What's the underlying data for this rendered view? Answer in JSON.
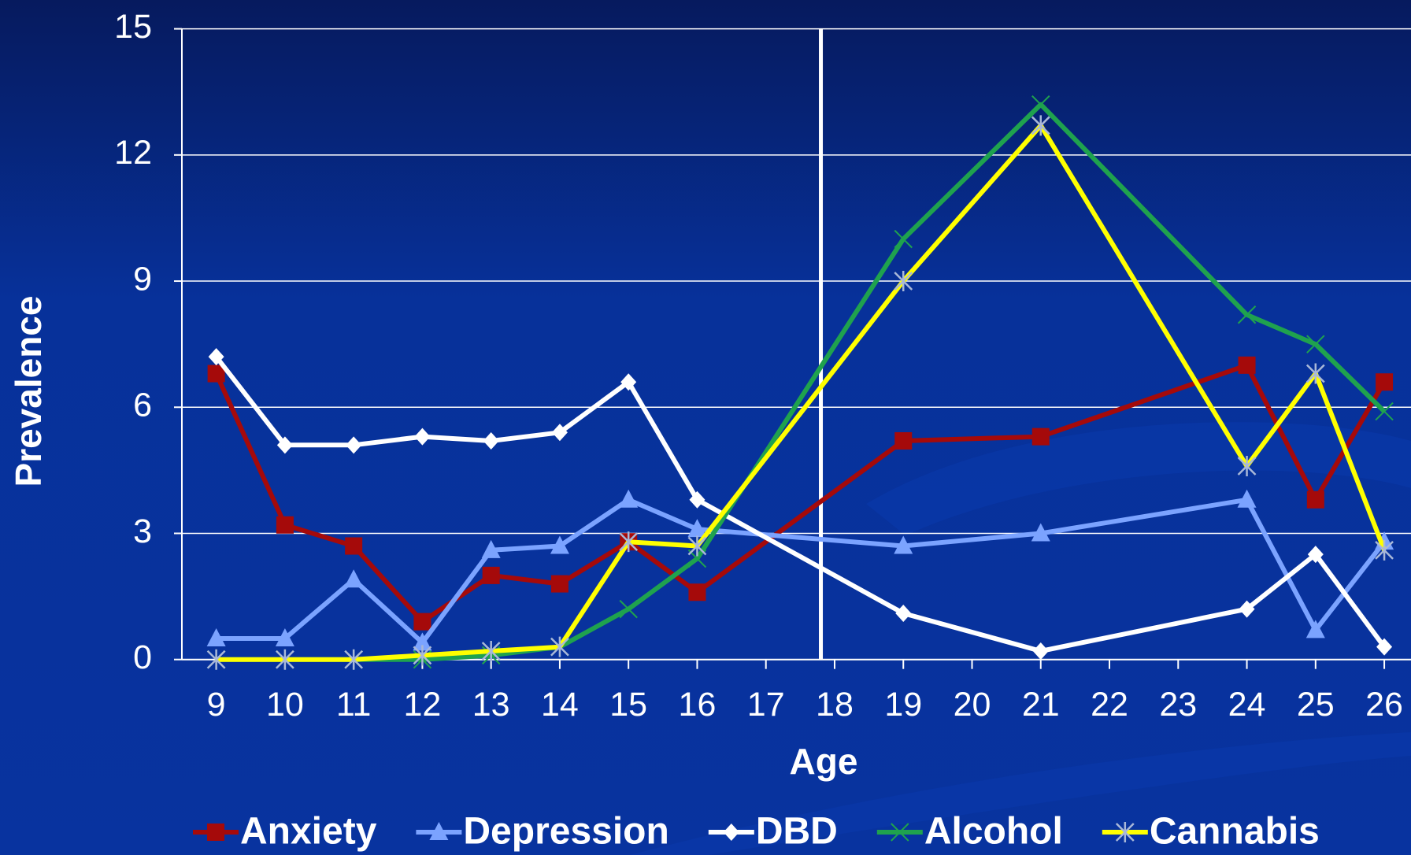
{
  "chart_data": {
    "type": "line",
    "xlabel": "Age",
    "ylabel": "Prevalence",
    "x": [
      9,
      10,
      11,
      12,
      13,
      14,
      15,
      16,
      19,
      21,
      24,
      25,
      26
    ],
    "xlim": [
      8.5,
      26.5
    ],
    "xticks": [
      9,
      10,
      11,
      12,
      13,
      14,
      15,
      16,
      17,
      18,
      19,
      20,
      21,
      22,
      23,
      24,
      25,
      26
    ],
    "ylim": [
      0,
      15
    ],
    "yticks": [
      0,
      3,
      6,
      9,
      12,
      15
    ],
    "grid": true,
    "vline_x": 17.8,
    "legend": "bottom",
    "series": [
      {
        "name": "Anxiety",
        "color": "#a50a0a",
        "marker": "square",
        "values": [
          6.8,
          3.2,
          2.7,
          0.9,
          2.0,
          1.8,
          2.8,
          1.6,
          5.2,
          5.3,
          7.0,
          3.8,
          6.6
        ]
      },
      {
        "name": "Depression",
        "color": "#7ba3ff",
        "marker": "triangle",
        "values": [
          0.5,
          0.5,
          1.9,
          0.4,
          2.6,
          2.7,
          3.8,
          3.1,
          2.7,
          3.0,
          3.8,
          0.7,
          2.8
        ]
      },
      {
        "name": "DBD",
        "color": "#ffffff",
        "marker": "diamond",
        "values": [
          7.2,
          5.1,
          5.1,
          5.3,
          5.2,
          5.4,
          6.6,
          3.8,
          1.1,
          0.2,
          1.2,
          2.5,
          0.3
        ]
      },
      {
        "name": "Alcohol",
        "color": "#1fa24e",
        "marker": "x",
        "values": [
          0,
          0,
          0,
          0,
          0.1,
          0.3,
          1.2,
          2.4,
          10.0,
          13.2,
          8.2,
          7.5,
          5.9
        ]
      },
      {
        "name": "Cannabis",
        "color": "#ffff00",
        "marker": "asterisk",
        "marker_color": "#a9b8d8",
        "values": [
          0,
          0,
          0,
          0.1,
          0.2,
          0.3,
          2.8,
          2.7,
          9.0,
          12.7,
          4.6,
          6.8,
          2.6
        ]
      }
    ]
  }
}
